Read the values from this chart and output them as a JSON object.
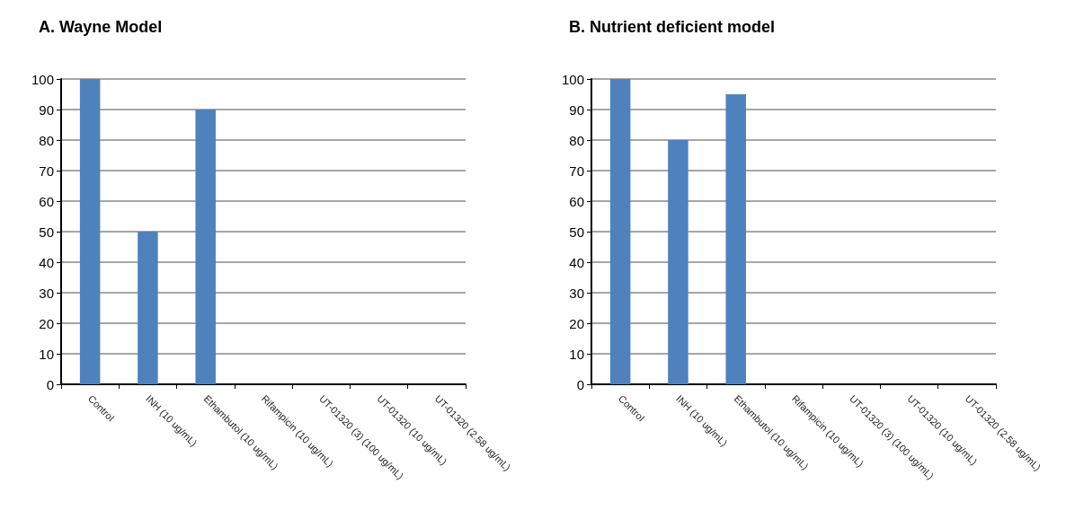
{
  "chart_data": [
    {
      "type": "bar",
      "title": "A. Wayne Model",
      "categories": [
        "Control",
        "INH (10 ug/mL)",
        "Ethambutol (10 ug/mL)",
        "Rifampicin (10 ug/mL)",
        "UT-01320 (3) (100 ug/mL)",
        "UT-01320 (10 ug/mL)",
        "UT-01320 (2.58 ug/mL)"
      ],
      "values": [
        100,
        50,
        90,
        0,
        0,
        0,
        0
      ],
      "color": "#4f81bd",
      "ylim": [
        0,
        100
      ],
      "yticks": [
        0,
        10,
        20,
        30,
        40,
        50,
        60,
        70,
        80,
        90,
        100
      ],
      "grid": "y"
    },
    {
      "type": "bar",
      "title": "B. Nutrient deficient model",
      "categories": [
        "Control",
        "INH (10 ug/mL)",
        "Ethambutol (10 ug/mL)",
        "Rifampicin (10 ug/mL)",
        "UT-01320 (3) (100 ug/mL)",
        "UT-01320 (10 ug/mL)",
        "UT-01320 (2.58 ug/mL)"
      ],
      "values": [
        100,
        80,
        95,
        0,
        0,
        0,
        0
      ],
      "color": "#4f81bd",
      "ylim": [
        0,
        100
      ],
      "yticks": [
        0,
        10,
        20,
        30,
        40,
        50,
        60,
        70,
        80,
        90,
        100
      ],
      "grid": "y"
    }
  ]
}
